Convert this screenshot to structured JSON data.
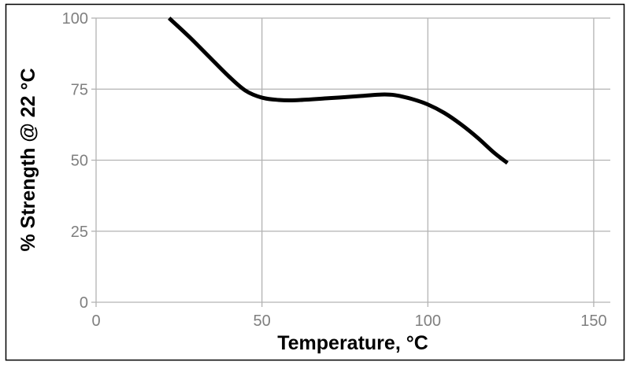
{
  "chart_data": {
    "type": "line",
    "xlabel": "Temperature, °C",
    "ylabel": "% Strength @ 22 °C",
    "xlim": [
      0,
      155
    ],
    "ylim": [
      0,
      100
    ],
    "xticks": [
      0,
      50,
      100,
      150
    ],
    "yticks": [
      0,
      25,
      50,
      75,
      100
    ],
    "grid": true,
    "series": [
      {
        "points": [
          [
            22,
            100
          ],
          [
            28,
            93.5
          ],
          [
            34,
            86.5
          ],
          [
            40,
            79.5
          ],
          [
            45,
            74.5
          ],
          [
            50,
            72
          ],
          [
            55,
            71.2
          ],
          [
            60,
            71.1
          ],
          [
            70,
            71.8
          ],
          [
            80,
            72.6
          ],
          [
            86,
            73.1
          ],
          [
            90,
            72.9
          ],
          [
            95,
            71.6
          ],
          [
            100,
            69.6
          ],
          [
            105,
            66.6
          ],
          [
            110,
            62.6
          ],
          [
            115,
            57.9
          ],
          [
            120,
            52.6
          ],
          [
            124,
            49
          ]
        ],
        "color": "#000000"
      }
    ],
    "colors": {
      "grid": "#b3b3b3",
      "tick_label": "#7f7f7f",
      "frame": "#000000"
    }
  }
}
